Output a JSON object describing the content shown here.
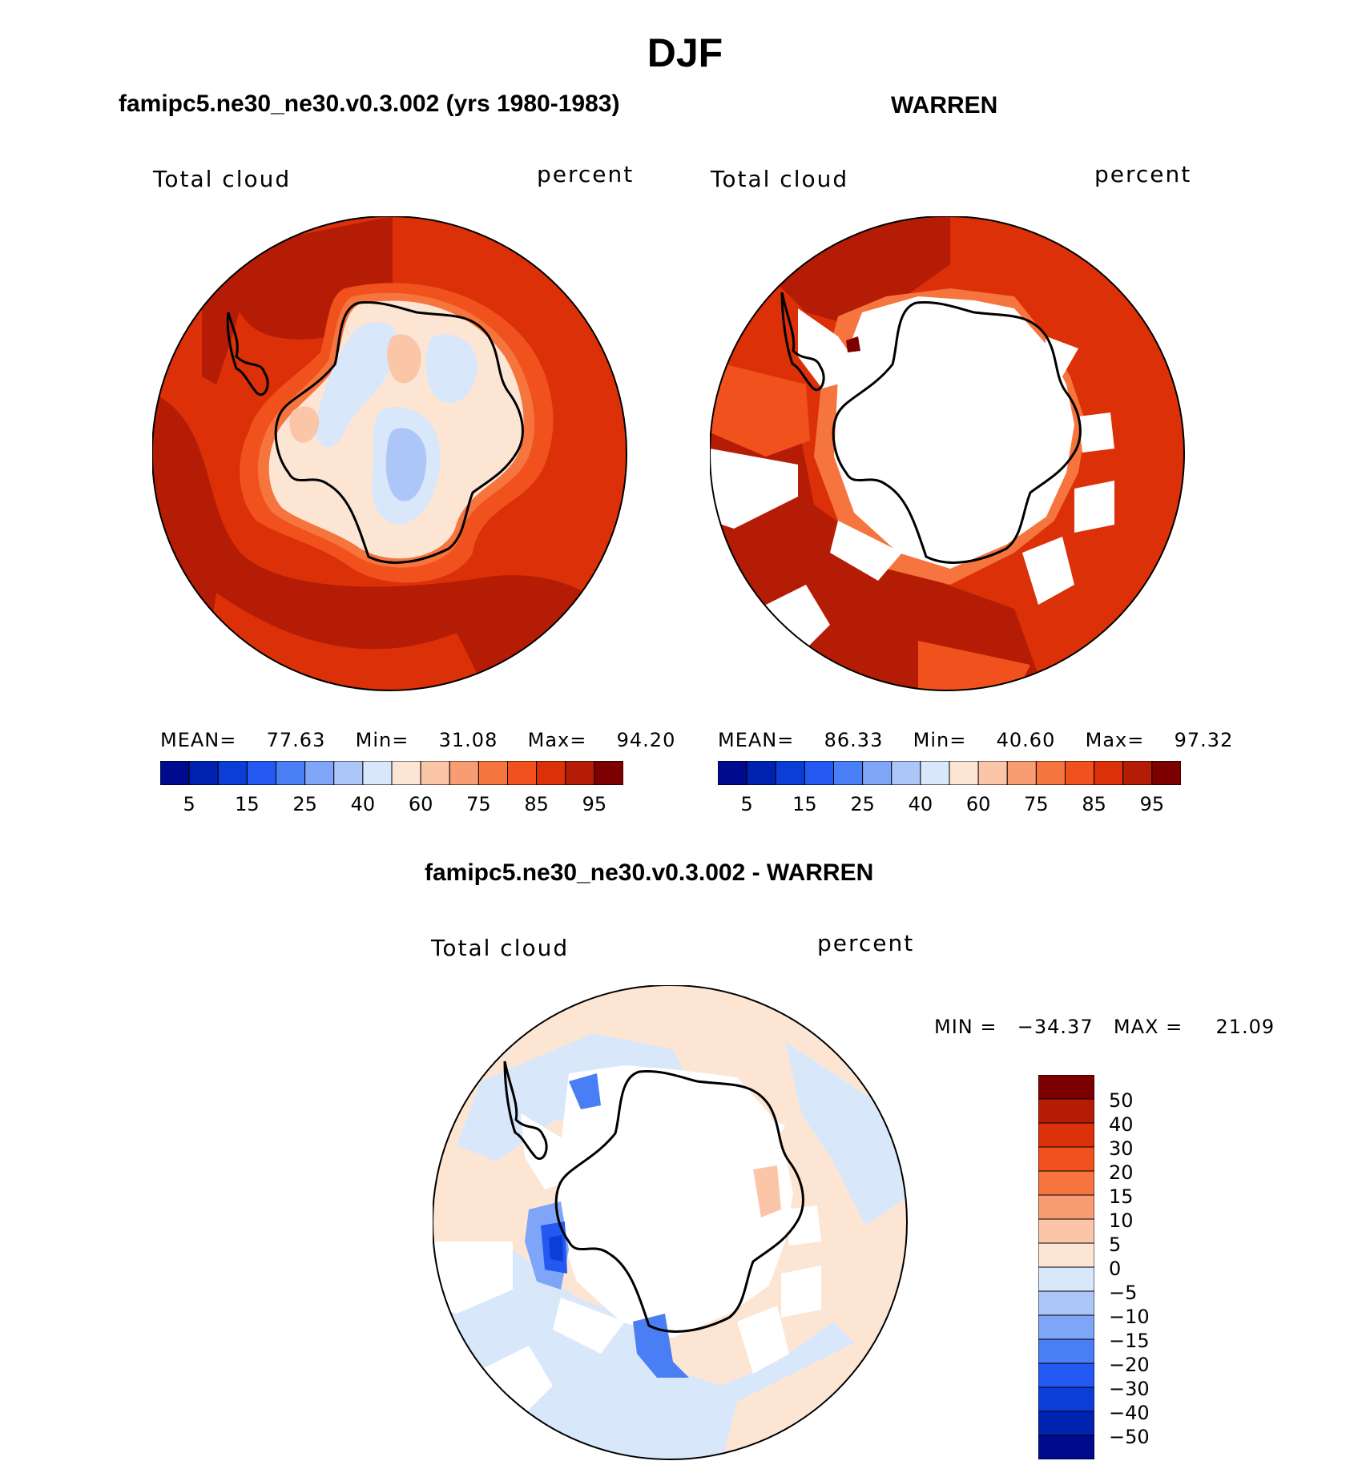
{
  "page_title": "DJF",
  "chart_data": [
    {
      "type": "heatmap",
      "title": "famipc5.ne30_ne30.v0.3.002 (yrs 1980-1983)",
      "left_label": "Total cloud",
      "right_label": "percent",
      "projection": "south polar stereographic",
      "stats": {
        "mean_label": "MEAN=",
        "mean": "77.63",
        "min_label": "Min=",
        "min": "31.08",
        "max_label": "Max=",
        "max": "94.20"
      },
      "colorbar_levels": [
        5,
        10,
        15,
        20,
        25,
        30,
        40,
        50,
        60,
        70,
        75,
        80,
        85,
        90,
        95
      ],
      "colorbar_tick_labels": [
        "5",
        "15",
        "25",
        "40",
        "60",
        "75",
        "85",
        "95"
      ],
      "colors": [
        "#000a8c",
        "#0022b0",
        "#0b3ed6",
        "#2358f2",
        "#4a7ef4",
        "#7ea5f7",
        "#adc6f8",
        "#d9e7fb",
        "#fde5d4",
        "#fbc6a8",
        "#f89c74",
        "#f6743e",
        "#f1511d",
        "#db3008",
        "#b51c05",
        "#7d0000"
      ]
    },
    {
      "type": "heatmap",
      "title": "WARREN",
      "left_label": "Total cloud",
      "right_label": "percent",
      "projection": "south polar stereographic",
      "stats": {
        "mean_label": "MEAN=",
        "mean": "86.33",
        "min_label": "Min=",
        "min": "40.60",
        "max_label": "Max=",
        "max": "97.32"
      },
      "colorbar_levels": [
        5,
        10,
        15,
        20,
        25,
        30,
        40,
        50,
        60,
        70,
        75,
        80,
        85,
        90,
        95
      ],
      "colorbar_tick_labels": [
        "5",
        "15",
        "25",
        "40",
        "60",
        "75",
        "85",
        "95"
      ],
      "colors": [
        "#000a8c",
        "#0022b0",
        "#0b3ed6",
        "#2358f2",
        "#4a7ef4",
        "#7ea5f7",
        "#adc6f8",
        "#d9e7fb",
        "#fde5d4",
        "#fbc6a8",
        "#f89c74",
        "#f6743e",
        "#f1511d",
        "#db3008",
        "#b51c05",
        "#7d0000"
      ]
    },
    {
      "type": "heatmap",
      "title": "famipc5.ne30_ne30.v0.3.002 - WARREN",
      "left_label": "Total cloud",
      "right_label": "percent",
      "projection": "south polar stereographic",
      "stats": {
        "min_label": "MIN =",
        "min": "−34.37",
        "max_label": "MAX =",
        "max": "21.09"
      },
      "colorbar_tick_labels": [
        "50",
        "40",
        "30",
        "20",
        "15",
        "10",
        "5",
        "0",
        "−5",
        "−10",
        "−15",
        "−20",
        "−30",
        "−40",
        "−50"
      ],
      "colors": [
        "#7d0000",
        "#b51c05",
        "#db3008",
        "#f1511d",
        "#f6743e",
        "#f89c74",
        "#fbc6a8",
        "#fde5d4",
        "#d9e7fb",
        "#adc6f8",
        "#7ea5f7",
        "#4a7ef4",
        "#2358f2",
        "#0b3ed6",
        "#0022b0",
        "#000a8c"
      ]
    }
  ]
}
